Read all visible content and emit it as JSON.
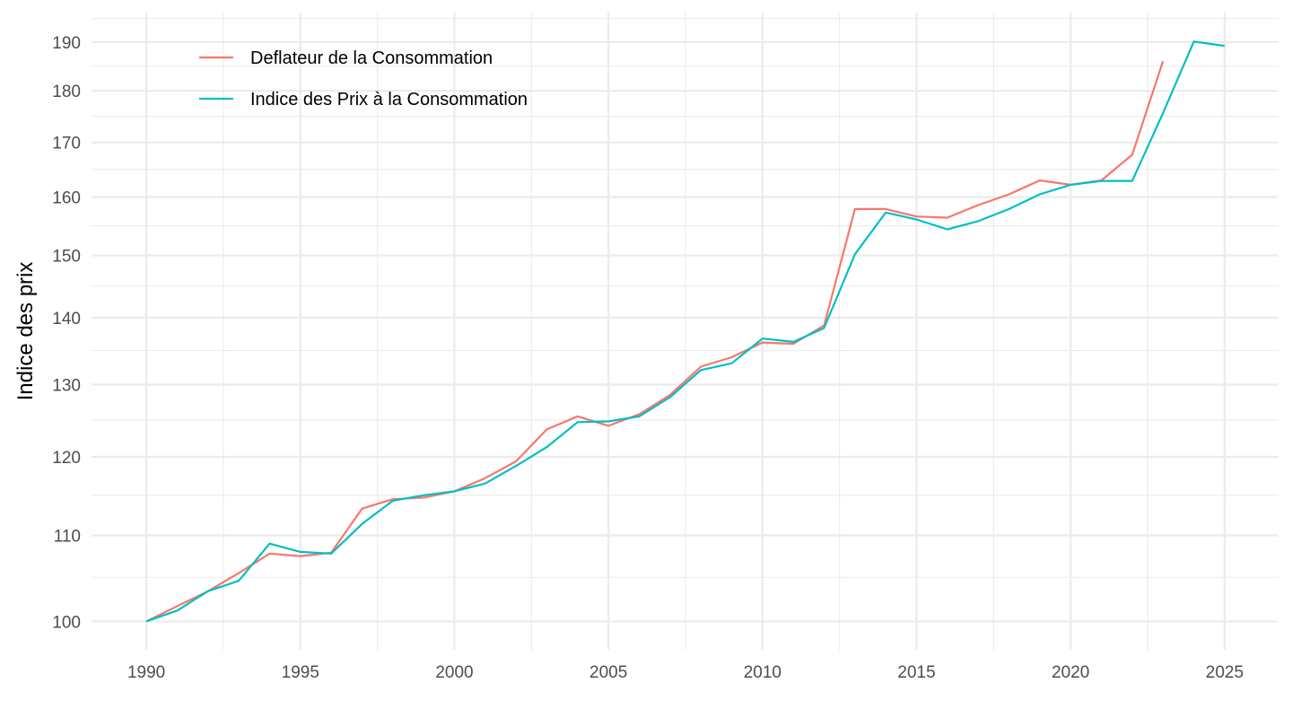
{
  "chart_data": {
    "type": "line",
    "title": "",
    "xlabel": "",
    "ylabel": "Indice des prix",
    "y_scale": "log",
    "xlim": [
      1988.22,
      2026.75
    ],
    "ylim": [
      96.9,
      196.3
    ],
    "x_ticks": [
      1990,
      1995,
      2000,
      2005,
      2010,
      2015,
      2020,
      2025
    ],
    "x_tick_labels": [
      "1990",
      "1995",
      "2000",
      "2005",
      "2010",
      "2015",
      "2020",
      "2025"
    ],
    "x_minor_ticks": [
      1992.5,
      1997.5,
      2002.5,
      2007.5,
      2012.5,
      2017.5,
      2022.5
    ],
    "y_ticks": [
      100,
      110,
      120,
      130,
      140,
      150,
      160,
      170,
      180,
      190
    ],
    "y_tick_labels": [
      "100",
      "110",
      "120",
      "130",
      "140",
      "150",
      "160",
      "170",
      "180",
      "190"
    ],
    "y_minor_ticks": [
      105,
      115,
      125,
      135,
      145,
      155,
      165,
      175,
      185,
      195
    ],
    "grid": true,
    "legend_position": "top-left",
    "series": [
      {
        "name": "Deflateur de la Consommation",
        "color": "#F8766D",
        "x": [
          1990,
          1991,
          1992,
          1993,
          1994,
          1995,
          1996,
          1997,
          1998,
          1999,
          2000,
          2001,
          2002,
          2003,
          2004,
          2005,
          2006,
          2007,
          2008,
          2009,
          2010,
          2011,
          2012,
          2013,
          2014,
          2015,
          2016,
          2017,
          2018,
          2019,
          2020,
          2021,
          2022,
          2023
        ],
        "values": [
          100.0,
          101.7,
          103.4,
          105.5,
          107.8,
          107.5,
          107.9,
          113.3,
          114.5,
          114.7,
          115.5,
          117.2,
          119.4,
          123.7,
          125.5,
          124.2,
          125.8,
          128.5,
          132.6,
          134.0,
          136.2,
          136.0,
          138.8,
          157.9,
          157.9,
          156.6,
          156.4,
          158.6,
          160.5,
          163.0,
          162.2,
          163.0,
          167.7,
          186.0
        ]
      },
      {
        "name": "Indice des Prix à la Consommation",
        "color": "#00BFC4",
        "x": [
          1990,
          1991,
          1992,
          1993,
          1994,
          1995,
          1996,
          1997,
          1998,
          1999,
          2000,
          2001,
          2002,
          2003,
          2004,
          2005,
          2006,
          2007,
          2008,
          2009,
          2010,
          2011,
          2012,
          2013,
          2014,
          2015,
          2016,
          2017,
          2018,
          2019,
          2020,
          2021,
          2022,
          2023,
          2024,
          2025
        ],
        "values": [
          100.0,
          101.2,
          103.4,
          104.6,
          109.0,
          108.0,
          107.8,
          111.4,
          114.3,
          115.0,
          115.5,
          116.5,
          118.8,
          121.3,
          124.7,
          124.8,
          125.5,
          128.2,
          132.1,
          133.1,
          136.8,
          136.3,
          138.4,
          150.2,
          157.3,
          156.1,
          154.4,
          155.8,
          157.9,
          160.5,
          162.2,
          162.9,
          162.9,
          175.6,
          190.1,
          189.2
        ]
      }
    ]
  }
}
